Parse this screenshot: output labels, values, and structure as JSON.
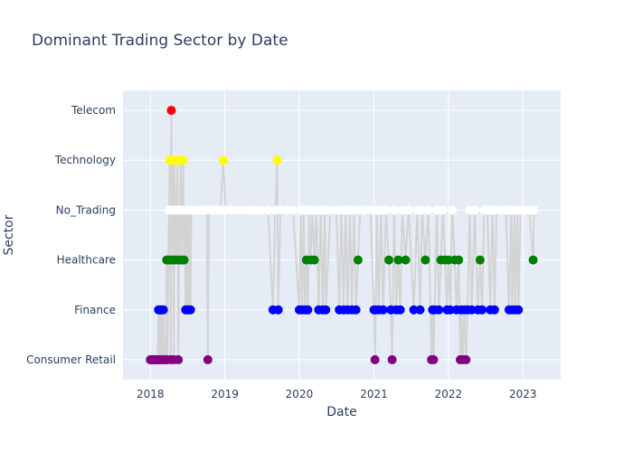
{
  "chart_data": {
    "type": "scatter",
    "mode": "lines+markers",
    "title": "Dominant Trading Sector by Date",
    "xlabel": "Date",
    "ylabel": "Sector",
    "x_ticks": [
      "2018",
      "2019",
      "2020",
      "2021",
      "2022",
      "2023"
    ],
    "x_range": [
      "2017-08-20",
      "2023-07-05"
    ],
    "categories": [
      "Consumer Retail",
      "Finance",
      "Healthcare",
      "No_Trading",
      "Technology",
      "Telecom"
    ],
    "grid": true,
    "legend": "none",
    "category_colors": {
      "Consumer Retail": "#800080",
      "Finance": "#0000ff",
      "Healthcare": "#008000",
      "No_Trading": "#ffffff",
      "Technology": "#ffff00",
      "Telecom": "#ff0000"
    },
    "line_color": "#d3d3d3",
    "plot_background": "#e5ecf6",
    "points": [
      {
        "x": "2018-01-01",
        "y": "Consumer Retail"
      },
      {
        "x": "2018-01-05",
        "y": "Consumer Retail"
      },
      {
        "x": "2018-01-09",
        "y": "Consumer Retail"
      },
      {
        "x": "2018-01-13",
        "y": "Consumer Retail"
      },
      {
        "x": "2018-01-17",
        "y": "Consumer Retail"
      },
      {
        "x": "2018-01-21",
        "y": "Consumer Retail"
      },
      {
        "x": "2018-01-25",
        "y": "Consumer Retail"
      },
      {
        "x": "2018-01-29",
        "y": "Consumer Retail"
      },
      {
        "x": "2018-02-02",
        "y": "Consumer Retail"
      },
      {
        "x": "2018-02-06",
        "y": "Consumer Retail"
      },
      {
        "x": "2018-02-10",
        "y": "Finance"
      },
      {
        "x": "2018-02-14",
        "y": "Consumer Retail"
      },
      {
        "x": "2018-02-18",
        "y": "Finance"
      },
      {
        "x": "2018-02-22",
        "y": "Consumer Retail"
      },
      {
        "x": "2018-02-26",
        "y": "Finance"
      },
      {
        "x": "2018-03-02",
        "y": "Consumer Retail"
      },
      {
        "x": "2018-03-06",
        "y": "Finance"
      },
      {
        "x": "2018-03-10",
        "y": "Consumer Retail"
      },
      {
        "x": "2018-03-14",
        "y": "Consumer Retail"
      },
      {
        "x": "2018-03-18",
        "y": "Consumer Retail"
      },
      {
        "x": "2018-03-22",
        "y": "Healthcare"
      },
      {
        "x": "2018-03-26",
        "y": "Consumer Retail"
      },
      {
        "x": "2018-03-30",
        "y": "Healthcare"
      },
      {
        "x": "2018-04-03",
        "y": "No_Trading"
      },
      {
        "x": "2018-04-06",
        "y": "Technology"
      },
      {
        "x": "2018-04-09",
        "y": "Healthcare"
      },
      {
        "x": "2018-04-11",
        "y": "Consumer Retail"
      },
      {
        "x": "2018-04-14",
        "y": "Telecom"
      },
      {
        "x": "2018-04-17",
        "y": "No_Trading"
      },
      {
        "x": "2018-04-20",
        "y": "Technology"
      },
      {
        "x": "2018-04-23",
        "y": "Healthcare"
      },
      {
        "x": "2018-04-26",
        "y": "Consumer Retail"
      },
      {
        "x": "2018-04-29",
        "y": "Technology"
      },
      {
        "x": "2018-05-02",
        "y": "No_Trading"
      },
      {
        "x": "2018-05-06",
        "y": "Healthcare"
      },
      {
        "x": "2018-05-10",
        "y": "No_Trading"
      },
      {
        "x": "2018-05-14",
        "y": "Technology"
      },
      {
        "x": "2018-05-18",
        "y": "Consumer Retail"
      },
      {
        "x": "2018-05-22",
        "y": "Healthcare"
      },
      {
        "x": "2018-05-26",
        "y": "No_Trading"
      },
      {
        "x": "2018-05-30",
        "y": "Technology"
      },
      {
        "x": "2018-06-03",
        "y": "Healthcare"
      },
      {
        "x": "2018-06-07",
        "y": "No_Trading"
      },
      {
        "x": "2018-06-11",
        "y": "Technology"
      },
      {
        "x": "2018-06-15",
        "y": "Healthcare"
      },
      {
        "x": "2018-06-19",
        "y": "No_Trading"
      },
      {
        "x": "2018-06-23",
        "y": "Finance"
      },
      {
        "x": "2018-06-27",
        "y": "No_Trading"
      },
      {
        "x": "2018-07-01",
        "y": "Finance"
      },
      {
        "x": "2018-07-05",
        "y": "No_Trading"
      },
      {
        "x": "2018-07-09",
        "y": "Finance"
      },
      {
        "x": "2018-07-13",
        "y": "No_Trading"
      },
      {
        "x": "2018-07-17",
        "y": "Finance"
      },
      {
        "x": "2018-07-21",
        "y": "No_Trading"
      },
      {
        "x": "2018-07-25",
        "y": "No_Trading"
      },
      {
        "x": "2018-08-01",
        "y": "No_Trading"
      },
      {
        "x": "2018-08-15",
        "y": "No_Trading"
      },
      {
        "x": "2018-09-01",
        "y": "No_Trading"
      },
      {
        "x": "2018-09-20",
        "y": "No_Trading"
      },
      {
        "x": "2018-10-05",
        "y": "No_Trading"
      },
      {
        "x": "2018-10-10",
        "y": "Consumer Retail"
      },
      {
        "x": "2018-10-15",
        "y": "No_Trading"
      },
      {
        "x": "2018-11-01",
        "y": "No_Trading"
      },
      {
        "x": "2018-11-20",
        "y": "No_Trading"
      },
      {
        "x": "2018-12-10",
        "y": "No_Trading"
      },
      {
        "x": "2018-12-25",
        "y": "Technology"
      },
      {
        "x": "2019-01-05",
        "y": "No_Trading"
      },
      {
        "x": "2019-02-01",
        "y": "No_Trading"
      },
      {
        "x": "2019-03-01",
        "y": "No_Trading"
      },
      {
        "x": "2019-04-01",
        "y": "No_Trading"
      },
      {
        "x": "2019-05-01",
        "y": "No_Trading"
      },
      {
        "x": "2019-06-01",
        "y": "No_Trading"
      },
      {
        "x": "2019-07-01",
        "y": "No_Trading"
      },
      {
        "x": "2019-08-01",
        "y": "No_Trading"
      },
      {
        "x": "2019-08-25",
        "y": "Finance"
      },
      {
        "x": "2019-09-05",
        "y": "No_Trading"
      },
      {
        "x": "2019-09-15",
        "y": "Technology"
      },
      {
        "x": "2019-09-20",
        "y": "Finance"
      },
      {
        "x": "2019-10-01",
        "y": "No_Trading"
      },
      {
        "x": "2019-11-01",
        "y": "No_Trading"
      },
      {
        "x": "2019-12-01",
        "y": "No_Trading"
      },
      {
        "x": "2020-01-01",
        "y": "Finance"
      },
      {
        "x": "2020-01-08",
        "y": "No_Trading"
      },
      {
        "x": "2020-01-15",
        "y": "Finance"
      },
      {
        "x": "2020-01-22",
        "y": "No_Trading"
      },
      {
        "x": "2020-01-29",
        "y": "Finance"
      },
      {
        "x": "2020-02-05",
        "y": "Healthcare"
      },
      {
        "x": "2020-02-12",
        "y": "Finance"
      },
      {
        "x": "2020-02-19",
        "y": "No_Trading"
      },
      {
        "x": "2020-02-26",
        "y": "Healthcare"
      },
      {
        "x": "2020-03-05",
        "y": "No_Trading"
      },
      {
        "x": "2020-03-15",
        "y": "Healthcare"
      },
      {
        "x": "2020-03-25",
        "y": "No_Trading"
      },
      {
        "x": "2020-04-05",
        "y": "Finance"
      },
      {
        "x": "2020-04-15",
        "y": "No_Trading"
      },
      {
        "x": "2020-04-25",
        "y": "Finance"
      },
      {
        "x": "2020-05-05",
        "y": "No_Trading"
      },
      {
        "x": "2020-05-10",
        "y": "Finance"
      },
      {
        "x": "2020-06-01",
        "y": "No_Trading"
      },
      {
        "x": "2020-07-01",
        "y": "No_Trading"
      },
      {
        "x": "2020-07-15",
        "y": "Finance"
      },
      {
        "x": "2020-07-25",
        "y": "No_Trading"
      },
      {
        "x": "2020-08-05",
        "y": "Finance"
      },
      {
        "x": "2020-08-15",
        "y": "No_Trading"
      },
      {
        "x": "2020-08-25",
        "y": "Finance"
      },
      {
        "x": "2020-09-05",
        "y": "No_Trading"
      },
      {
        "x": "2020-09-15",
        "y": "Finance"
      },
      {
        "x": "2020-09-25",
        "y": "No_Trading"
      },
      {
        "x": "2020-10-05",
        "y": "Finance"
      },
      {
        "x": "2020-10-15",
        "y": "Healthcare"
      },
      {
        "x": "2020-10-25",
        "y": "No_Trading"
      },
      {
        "x": "2020-11-15",
        "y": "No_Trading"
      },
      {
        "x": "2020-12-15",
        "y": "No_Trading"
      },
      {
        "x": "2021-01-01",
        "y": "Finance"
      },
      {
        "x": "2021-01-06",
        "y": "Consumer Retail"
      },
      {
        "x": "2021-01-10",
        "y": "Finance"
      },
      {
        "x": "2021-01-15",
        "y": "No_Trading"
      },
      {
        "x": "2021-01-25",
        "y": "Finance"
      },
      {
        "x": "2021-02-05",
        "y": "No_Trading"
      },
      {
        "x": "2021-02-15",
        "y": "Finance"
      },
      {
        "x": "2021-03-01",
        "y": "No_Trading"
      },
      {
        "x": "2021-03-15",
        "y": "Healthcare"
      },
      {
        "x": "2021-03-25",
        "y": "Finance"
      },
      {
        "x": "2021-03-31",
        "y": "Consumer Retail"
      },
      {
        "x": "2021-04-10",
        "y": "No_Trading"
      },
      {
        "x": "2021-04-20",
        "y": "Finance"
      },
      {
        "x": "2021-04-30",
        "y": "Healthcare"
      },
      {
        "x": "2021-05-10",
        "y": "Finance"
      },
      {
        "x": "2021-05-20",
        "y": "No_Trading"
      },
      {
        "x": "2021-06-05",
        "y": "Healthcare"
      },
      {
        "x": "2021-06-20",
        "y": "No_Trading"
      },
      {
        "x": "2021-07-15",
        "y": "Finance"
      },
      {
        "x": "2021-08-01",
        "y": "No_Trading"
      },
      {
        "x": "2021-08-15",
        "y": "Finance"
      },
      {
        "x": "2021-08-25",
        "y": "No_Trading"
      },
      {
        "x": "2021-09-10",
        "y": "Healthcare"
      },
      {
        "x": "2021-09-25",
        "y": "No_Trading"
      },
      {
        "x": "2021-10-10",
        "y": "Consumer Retail"
      },
      {
        "x": "2021-10-15",
        "y": "Finance"
      },
      {
        "x": "2021-10-20",
        "y": "Consumer Retail"
      },
      {
        "x": "2021-10-25",
        "y": "Finance"
      },
      {
        "x": "2021-11-05",
        "y": "No_Trading"
      },
      {
        "x": "2021-11-15",
        "y": "Finance"
      },
      {
        "x": "2021-11-25",
        "y": "Healthcare"
      },
      {
        "x": "2021-12-05",
        "y": "No_Trading"
      },
      {
        "x": "2021-12-15",
        "y": "Healthcare"
      },
      {
        "x": "2021-12-25",
        "y": "Finance"
      },
      {
        "x": "2022-01-01",
        "y": "Healthcare"
      },
      {
        "x": "2022-01-10",
        "y": "Finance"
      },
      {
        "x": "2022-01-20",
        "y": "No_Trading"
      },
      {
        "x": "2022-02-01",
        "y": "Healthcare"
      },
      {
        "x": "2022-02-10",
        "y": "Finance"
      },
      {
        "x": "2022-02-20",
        "y": "Healthcare"
      },
      {
        "x": "2022-02-28",
        "y": "Consumer Retail"
      },
      {
        "x": "2022-03-05",
        "y": "Finance"
      },
      {
        "x": "2022-03-12",
        "y": "Consumer Retail"
      },
      {
        "x": "2022-03-20",
        "y": "Finance"
      },
      {
        "x": "2022-03-28",
        "y": "Consumer Retail"
      },
      {
        "x": "2022-04-05",
        "y": "Finance"
      },
      {
        "x": "2022-04-15",
        "y": "No_Trading"
      },
      {
        "x": "2022-04-25",
        "y": "Finance"
      },
      {
        "x": "2022-05-10",
        "y": "No_Trading"
      },
      {
        "x": "2022-05-25",
        "y": "Finance"
      },
      {
        "x": "2022-06-05",
        "y": "Healthcare"
      },
      {
        "x": "2022-06-15",
        "y": "Finance"
      },
      {
        "x": "2022-06-25",
        "y": "No_Trading"
      },
      {
        "x": "2022-07-10",
        "y": "No_Trading"
      },
      {
        "x": "2022-07-25",
        "y": "Finance"
      },
      {
        "x": "2022-08-05",
        "y": "No_Trading"
      },
      {
        "x": "2022-08-15",
        "y": "Finance"
      },
      {
        "x": "2022-08-25",
        "y": "No_Trading"
      },
      {
        "x": "2022-09-15",
        "y": "No_Trading"
      },
      {
        "x": "2022-10-10",
        "y": "No_Trading"
      },
      {
        "x": "2022-10-25",
        "y": "Finance"
      },
      {
        "x": "2022-11-05",
        "y": "No_Trading"
      },
      {
        "x": "2022-11-10",
        "y": "Finance"
      },
      {
        "x": "2022-11-20",
        "y": "No_Trading"
      },
      {
        "x": "2022-11-25",
        "y": "Finance"
      },
      {
        "x": "2022-12-05",
        "y": "No_Trading"
      },
      {
        "x": "2022-12-10",
        "y": "Finance"
      },
      {
        "x": "2022-12-20",
        "y": "No_Trading"
      },
      {
        "x": "2023-01-10",
        "y": "No_Trading"
      },
      {
        "x": "2023-02-01",
        "y": "No_Trading"
      },
      {
        "x": "2023-02-20",
        "y": "Healthcare"
      },
      {
        "x": "2023-02-24",
        "y": "No_Trading"
      }
    ]
  }
}
